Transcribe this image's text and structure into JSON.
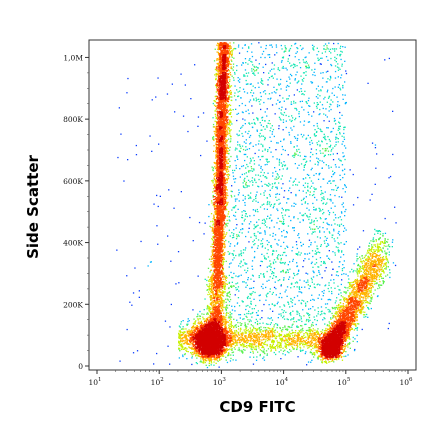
{
  "chart_data": {
    "type": "scatter",
    "title": "",
    "xlabel": "CD9 FITC",
    "ylabel": "Side Scatter",
    "x_scale": "log",
    "x_range": [
      10,
      1000000
    ],
    "y_range": [
      0,
      1050000
    ],
    "x_ticks": [
      {
        "value": 10,
        "base": "10",
        "exp": "1"
      },
      {
        "value": 100,
        "base": "10",
        "exp": "2"
      },
      {
        "value": 1000,
        "base": "10",
        "exp": "3"
      },
      {
        "value": 10000,
        "base": "10",
        "exp": "4"
      },
      {
        "value": 100000,
        "base": "10",
        "exp": "5"
      },
      {
        "value": 1000000,
        "base": "10",
        "exp": "6"
      }
    ],
    "y_ticks": [
      {
        "value": 0,
        "label": "0"
      },
      {
        "value": 200000,
        "label": "200K"
      },
      {
        "value": 400000,
        "label": "400K"
      },
      {
        "value": 600000,
        "label": "600K"
      },
      {
        "value": 800000,
        "label": "800K"
      },
      {
        "value": 1000000,
        "label": "1,0M"
      }
    ],
    "colormap": "density (blue-cyan-green-yellow-red)",
    "colors": [
      "#0000c8",
      "#0a3cff",
      "#00b4ff",
      "#14e6b4",
      "#5af050",
      "#c8f000",
      "#ffb400",
      "#ff4600",
      "#d20000"
    ],
    "populations": [
      {
        "center": [
          650,
          85000
        ],
        "spread": [
          0.15,
          35000
        ],
        "density": "high",
        "count": 3200
      },
      {
        "center": [
          65000,
          60000
        ],
        "spread": [
          0.22,
          30000
        ],
        "density": "high",
        "count": 3600
      },
      {
        "center": [
          1000,
          600000
        ],
        "spread": [
          0.06,
          380000
        ],
        "density": "medium",
        "count": 5200
      },
      {
        "center": [
          5000,
          500000
        ],
        "spread": [
          0.6,
          250000
        ],
        "density": "low",
        "count": 2000
      },
      {
        "center": [
          10000,
          90000
        ],
        "spread": [
          0.35,
          30000
        ],
        "density": "low",
        "count": 1800
      }
    ]
  }
}
